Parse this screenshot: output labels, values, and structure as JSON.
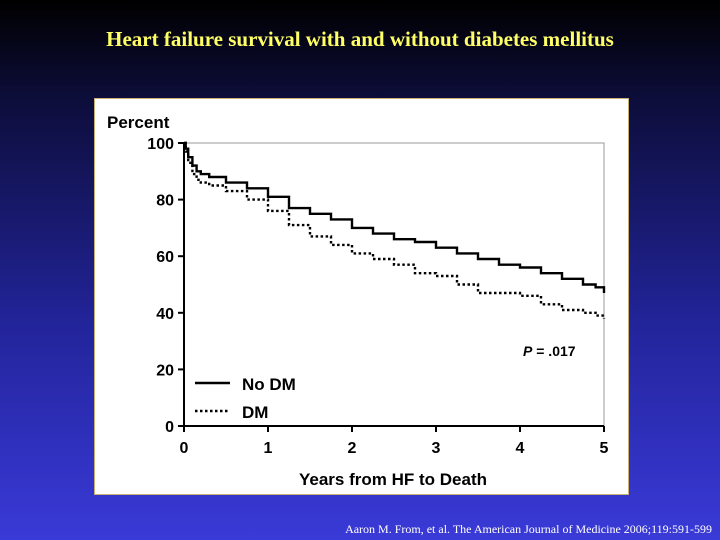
{
  "slide": {
    "title": "Heart failure survival with and without diabetes mellitus",
    "citation": "Aaron M. From, et al. The American Journal of Medicine 2006;119:591-599"
  },
  "chart_data": {
    "type": "line",
    "title": "",
    "ylabel": "Percent",
    "xlabel": "Years from HF to Death",
    "xlim": [
      0,
      5
    ],
    "ylim": [
      0,
      100
    ],
    "xticks": [
      0,
      1,
      2,
      3,
      4,
      5
    ],
    "yticks": [
      0,
      20,
      40,
      60,
      80,
      100
    ],
    "grid": false,
    "legend_position": "bottom-left",
    "annotation": {
      "italic_part": "P",
      "rest": " = .017"
    },
    "series": [
      {
        "name": "No DM",
        "style": "solid",
        "x": [
          0,
          0.02,
          0.05,
          0.1,
          0.15,
          0.2,
          0.3,
          0.5,
          0.75,
          1,
          1.25,
          1.5,
          1.75,
          2,
          2.25,
          2.5,
          2.75,
          3,
          3.25,
          3.5,
          3.75,
          4,
          4.25,
          4.5,
          4.75,
          4.9,
          5
        ],
        "y": [
          100,
          98,
          95,
          92,
          90,
          89,
          88,
          86,
          84,
          81,
          77,
          75,
          73,
          70,
          68,
          66,
          65,
          63,
          61,
          59,
          57,
          56,
          54,
          52,
          50,
          49,
          47
        ]
      },
      {
        "name": "DM",
        "style": "dotted",
        "x": [
          0,
          0.02,
          0.05,
          0.1,
          0.15,
          0.2,
          0.3,
          0.5,
          0.75,
          1,
          1.25,
          1.5,
          1.75,
          2,
          2.25,
          2.5,
          2.75,
          3,
          3.25,
          3.5,
          3.75,
          4,
          4.25,
          4.5,
          4.75,
          4.9,
          5
        ],
        "y": [
          100,
          97,
          93,
          89,
          87,
          86,
          85,
          83,
          80,
          76,
          71,
          67,
          64,
          61,
          59,
          57,
          54,
          53,
          50,
          47,
          47,
          46,
          43,
          41,
          40,
          39,
          38
        ]
      }
    ]
  }
}
